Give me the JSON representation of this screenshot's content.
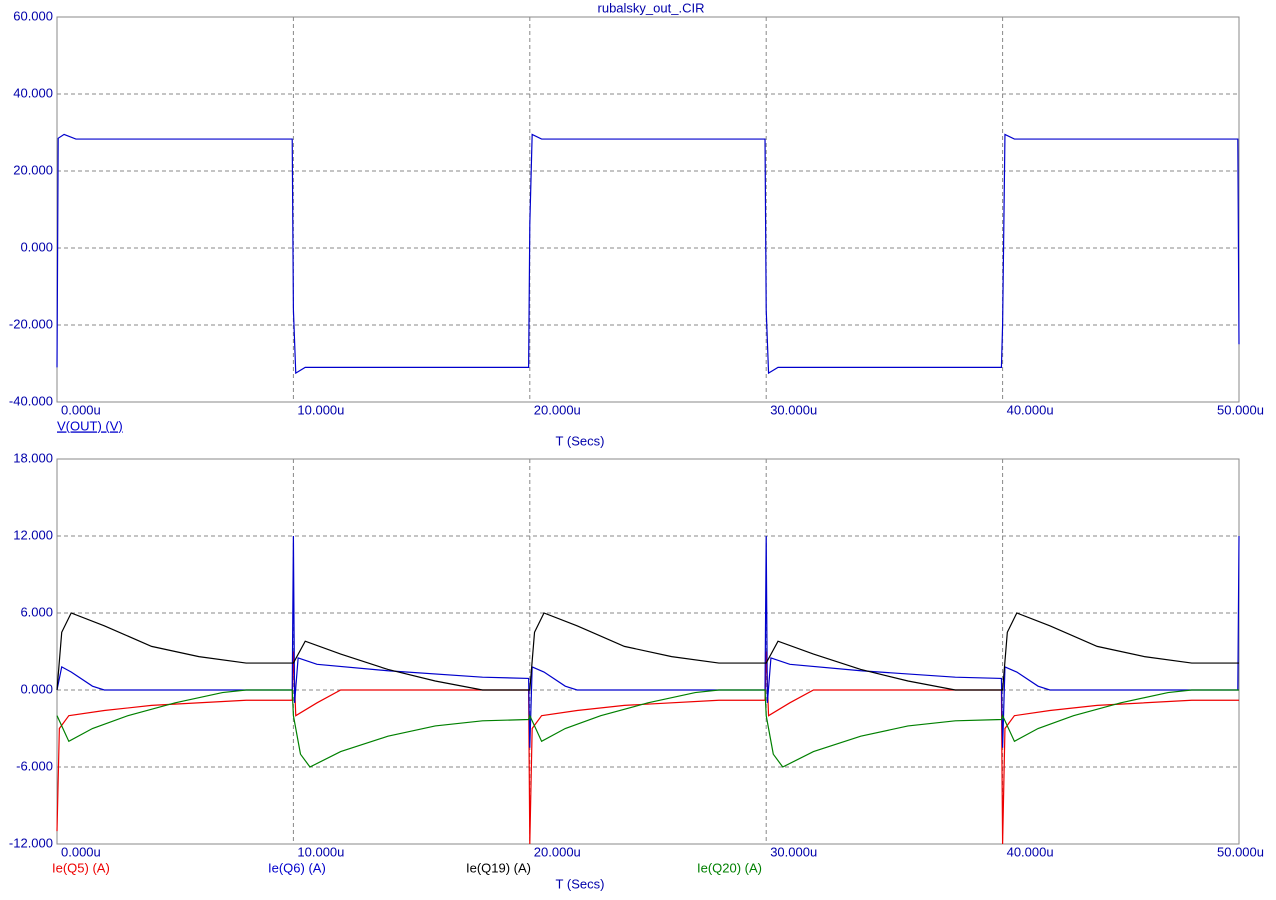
{
  "chart_data": [
    {
      "type": "line",
      "title": "rubalsky_out_.CIR",
      "xlabel": "T (Secs)",
      "grid": true,
      "log_scale": false,
      "xlim": [
        0,
        50
      ],
      "ylim": [
        -40,
        60
      ],
      "xticks": [
        {
          "value": 0,
          "label": "0.000u"
        },
        {
          "value": 10,
          "label": "10.000u"
        },
        {
          "value": 20,
          "label": "20.000u"
        },
        {
          "value": 30,
          "label": "30.000u"
        },
        {
          "value": 40,
          "label": "40.000u"
        },
        {
          "value": 50,
          "label": "50.000u"
        }
      ],
      "yticks": [
        {
          "value": -40,
          "label": "-40.000"
        },
        {
          "value": -20,
          "label": "-20.000"
        },
        {
          "value": 0,
          "label": "0.000"
        },
        {
          "value": 20,
          "label": "20.000"
        },
        {
          "value": 40,
          "label": "40.000"
        },
        {
          "value": 60,
          "label": "60.000"
        }
      ],
      "series": [
        {
          "name": "V(OUT) (V)",
          "color": "#0000cc",
          "x": [
            0,
            0.05,
            0.3,
            0.8,
            9.95,
            10,
            10.1,
            10.5,
            19.95,
            20,
            20.1,
            20.5,
            29.95,
            30,
            30.1,
            30.5,
            39.95,
            40,
            40.1,
            40.5,
            49.95,
            50
          ],
          "values": [
            -31,
            28.5,
            29.5,
            28.3,
            28.3,
            -16,
            -32.5,
            -31,
            -31,
            6,
            29.5,
            28.3,
            28.3,
            -16,
            -32.5,
            -31,
            -31,
            -20,
            29.5,
            28.3,
            28.3,
            -25
          ]
        }
      ]
    },
    {
      "type": "line",
      "xlabel": "T (Secs)",
      "grid": true,
      "log_scale": false,
      "xlim": [
        0,
        50
      ],
      "ylim": [
        -12,
        18
      ],
      "xticks": [
        {
          "value": 0,
          "label": "0.000u"
        },
        {
          "value": 10,
          "label": "10.000u"
        },
        {
          "value": 20,
          "label": "20.000u"
        },
        {
          "value": 30,
          "label": "30.000u"
        },
        {
          "value": 40,
          "label": "40.000u"
        },
        {
          "value": 50,
          "label": "50.000u"
        }
      ],
      "yticks": [
        {
          "value": -12,
          "label": "-12.000"
        },
        {
          "value": -6,
          "label": "-6.000"
        },
        {
          "value": 0,
          "label": "0.000"
        },
        {
          "value": 6,
          "label": "6.000"
        },
        {
          "value": 12,
          "label": "12.000"
        },
        {
          "value": 18,
          "label": "18.000"
        }
      ],
      "series": [
        {
          "name": "Ie(Q5) (A)",
          "color": "#ee0000",
          "x": [
            0,
            0.1,
            0.5,
            2,
            4,
            8,
            9.95,
            10,
            10.1,
            11,
            12,
            19.95,
            20,
            20.1,
            20.5,
            22,
            24,
            28,
            29.95,
            30,
            30.1,
            31,
            32,
            39.95,
            40,
            40.1,
            40.5,
            42,
            44,
            48,
            50
          ],
          "values": [
            -11,
            -3,
            -2,
            -1.6,
            -1.2,
            -0.8,
            -0.8,
            3,
            -2,
            -1,
            0,
            0,
            -12,
            -3,
            -2,
            -1.6,
            -1.2,
            -0.8,
            -0.8,
            3,
            -2,
            -1,
            0,
            0,
            -12,
            -3,
            -2,
            -1.6,
            -1.2,
            -0.8,
            -0.8
          ]
        },
        {
          "name": "Ie(Q6) (A)",
          "color": "#0000cc",
          "x": [
            0,
            0.2,
            0.6,
            1.5,
            2,
            9.95,
            10,
            10.05,
            10.2,
            11,
            14,
            18,
            19.95,
            20,
            20.1,
            20.6,
            21.5,
            22,
            29.95,
            30,
            30.05,
            30.2,
            31,
            34,
            38,
            39.95,
            40,
            40.1,
            40.6,
            41.5,
            42,
            49.95,
            50
          ],
          "values": [
            0,
            1.8,
            1.4,
            0.3,
            0,
            0,
            12,
            -1,
            2.5,
            2,
            1.5,
            1,
            0.9,
            -4.5,
            1.8,
            1.4,
            0.3,
            0,
            0,
            12,
            -1,
            2.5,
            2,
            1.5,
            1,
            0.9,
            -4.5,
            1.8,
            1.4,
            0.3,
            0,
            0,
            12
          ]
        },
        {
          "name": "Ie(Q19) (A)",
          "color": "#000000",
          "x": [
            0,
            0.2,
            0.6,
            2,
            4,
            6,
            8,
            10,
            10.5,
            12,
            14,
            16,
            18,
            20,
            20.2,
            20.6,
            22,
            24,
            26,
            28,
            30,
            30.5,
            32,
            34,
            36,
            38,
            40,
            40.2,
            40.6,
            42,
            44,
            46,
            48,
            50
          ],
          "values": [
            0,
            4.5,
            6,
            5,
            3.4,
            2.6,
            2.1,
            2.1,
            3.8,
            2.8,
            1.6,
            0.7,
            0,
            0,
            4.5,
            6,
            5,
            3.4,
            2.6,
            2.1,
            2.1,
            3.8,
            2.8,
            1.6,
            0.7,
            0,
            0,
            4.5,
            6,
            5,
            3.4,
            2.6,
            2.1,
            2.1
          ]
        },
        {
          "name": "Ie(Q20) (A)",
          "color": "#008000",
          "x": [
            0,
            0.5,
            1.5,
            3,
            5,
            7,
            8,
            9.95,
            10,
            10.3,
            10.7,
            12,
            14,
            16,
            18,
            19.95,
            20,
            20.5,
            21.5,
            23,
            25,
            27,
            28,
            29.95,
            30,
            30.3,
            30.7,
            32,
            34,
            36,
            38,
            39.95,
            40,
            40.5,
            41.5,
            43,
            45,
            47,
            48,
            50
          ],
          "values": [
            -2,
            -4,
            -3,
            -2,
            -1,
            -0.2,
            0,
            0,
            -2,
            -5,
            -6,
            -4.8,
            -3.6,
            -2.8,
            -2.4,
            -2.3,
            -2,
            -4,
            -3,
            -2,
            -1,
            -0.2,
            0,
            0,
            -2,
            -5,
            -6,
            -4.8,
            -3.6,
            -2.8,
            -2.4,
            -2.3,
            -2,
            -4,
            -3,
            -2,
            -1,
            -0.2,
            0,
            0
          ]
        }
      ]
    }
  ]
}
